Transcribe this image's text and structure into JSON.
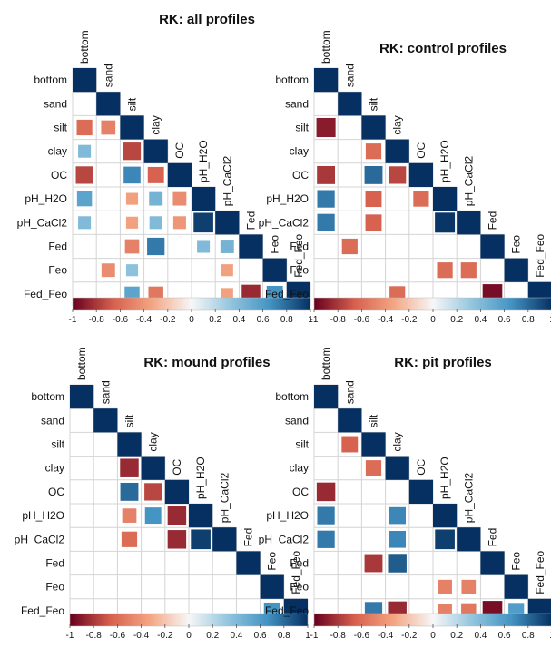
{
  "palette": {
    "neg_end": "#67001f",
    "neg_mid": "#d6604d",
    "neg_light": "#f4a582",
    "neutral": "#f7f7f7",
    "pos_light": "#92c5de",
    "pos_mid": "#4393c3",
    "pos_end": "#053061"
  },
  "chart_data": [
    {
      "type": "heatmap",
      "title": "RK: all profiles",
      "variables": [
        "bottom",
        "sand",
        "silt",
        "clay",
        "OC",
        "pH_H2O",
        "pH_CaCl2",
        "Fed",
        "Feo",
        "Fed_Feo"
      ],
      "colorbar_ticks": [
        "-1",
        "-0.8",
        "-0.6",
        "-0.4",
        "-0.2",
        "0",
        "0.2",
        "0.4",
        "0.6",
        "0.8",
        "1"
      ],
      "cells": [
        {
          "row": 0,
          "col": 0,
          "value": 1
        },
        {
          "row": 1,
          "col": 1,
          "value": 1
        },
        {
          "row": 2,
          "col": 0,
          "value": -0.6
        },
        {
          "row": 2,
          "col": 1,
          "value": -0.5
        },
        {
          "row": 2,
          "col": 2,
          "value": 1
        },
        {
          "row": 3,
          "col": 0,
          "value": 0.4
        },
        {
          "row": 3,
          "col": 2,
          "value": -0.75
        },
        {
          "row": 3,
          "col": 3,
          "value": 1
        },
        {
          "row": 4,
          "col": 0,
          "value": -0.75
        },
        {
          "row": 4,
          "col": 2,
          "value": 0.7
        },
        {
          "row": 4,
          "col": 3,
          "value": -0.65
        },
        {
          "row": 4,
          "col": 4,
          "value": 1
        },
        {
          "row": 5,
          "col": 0,
          "value": 0.55
        },
        {
          "row": 5,
          "col": 2,
          "value": -0.35
        },
        {
          "row": 5,
          "col": 3,
          "value": 0.45
        },
        {
          "row": 5,
          "col": 4,
          "value": -0.45
        },
        {
          "row": 5,
          "col": 5,
          "value": 1
        },
        {
          "row": 6,
          "col": 0,
          "value": 0.4
        },
        {
          "row": 6,
          "col": 2,
          "value": -0.35
        },
        {
          "row": 6,
          "col": 3,
          "value": 0.4
        },
        {
          "row": 6,
          "col": 4,
          "value": -0.4
        },
        {
          "row": 6,
          "col": 5,
          "value": 0.95
        },
        {
          "row": 6,
          "col": 6,
          "value": 1
        },
        {
          "row": 7,
          "col": 2,
          "value": -0.5
        },
        {
          "row": 7,
          "col": 3,
          "value": 0.75
        },
        {
          "row": 7,
          "col": 5,
          "value": 0.4
        },
        {
          "row": 7,
          "col": 6,
          "value": 0.45
        },
        {
          "row": 7,
          "col": 7,
          "value": 1
        },
        {
          "row": 8,
          "col": 1,
          "value": -0.45
        },
        {
          "row": 8,
          "col": 2,
          "value": 0.35
        },
        {
          "row": 8,
          "col": 6,
          "value": -0.35
        },
        {
          "row": 8,
          "col": 8,
          "value": 1
        },
        {
          "row": 9,
          "col": 2,
          "value": 0.55
        },
        {
          "row": 9,
          "col": 3,
          "value": -0.55
        },
        {
          "row": 9,
          "col": 6,
          "value": -0.35
        },
        {
          "row": 9,
          "col": 7,
          "value": -0.85
        },
        {
          "row": 9,
          "col": 8,
          "value": 0.65
        },
        {
          "row": 9,
          "col": 9,
          "value": 1
        }
      ]
    },
    {
      "type": "heatmap",
      "title": "RK: control profiles",
      "variables": [
        "bottom",
        "sand",
        "silt",
        "clay",
        "OC",
        "pH_H2O",
        "pH_CaCl2",
        "Fed",
        "Feo",
        "Fed_Feo"
      ],
      "colorbar_ticks": [
        "-1",
        "-0.8",
        "-0.6",
        "-0.4",
        "-0.2",
        "0",
        "0.2",
        "0.4",
        "0.6",
        "0.8",
        "1"
      ],
      "cells": [
        {
          "row": 0,
          "col": 0,
          "value": 1
        },
        {
          "row": 1,
          "col": 1,
          "value": 1
        },
        {
          "row": 2,
          "col": 0,
          "value": -0.9
        },
        {
          "row": 2,
          "col": 2,
          "value": 1
        },
        {
          "row": 3,
          "col": 2,
          "value": -0.6
        },
        {
          "row": 3,
          "col": 3,
          "value": 1
        },
        {
          "row": 4,
          "col": 0,
          "value": -0.8
        },
        {
          "row": 4,
          "col": 2,
          "value": 0.8
        },
        {
          "row": 4,
          "col": 3,
          "value": -0.75
        },
        {
          "row": 4,
          "col": 4,
          "value": 1
        },
        {
          "row": 5,
          "col": 0,
          "value": 0.75
        },
        {
          "row": 5,
          "col": 2,
          "value": -0.65
        },
        {
          "row": 5,
          "col": 4,
          "value": -0.6
        },
        {
          "row": 5,
          "col": 5,
          "value": 1
        },
        {
          "row": 6,
          "col": 0,
          "value": 0.75
        },
        {
          "row": 6,
          "col": 2,
          "value": -0.65
        },
        {
          "row": 6,
          "col": 5,
          "value": 0.98
        },
        {
          "row": 6,
          "col": 6,
          "value": 1
        },
        {
          "row": 7,
          "col": 1,
          "value": -0.6
        },
        {
          "row": 7,
          "col": 7,
          "value": 1
        },
        {
          "row": 8,
          "col": 5,
          "value": -0.6
        },
        {
          "row": 8,
          "col": 6,
          "value": -0.6
        },
        {
          "row": 8,
          "col": 8,
          "value": 1
        },
        {
          "row": 9,
          "col": 3,
          "value": -0.6
        },
        {
          "row": 9,
          "col": 7,
          "value": -0.95
        },
        {
          "row": 9,
          "col": 9,
          "value": 1
        }
      ]
    },
    {
      "type": "heatmap",
      "title": "RK: mound profiles",
      "variables": [
        "bottom",
        "sand",
        "silt",
        "clay",
        "OC",
        "pH_H2O",
        "pH_CaCl2",
        "Fed",
        "Feo",
        "Fed_Feo"
      ],
      "colorbar_ticks": [
        "-1",
        "-0.8",
        "-0.6",
        "-0.4",
        "-0.2",
        "0",
        "0.2",
        "0.4",
        "0.6",
        "0.8",
        "1"
      ],
      "cells": [
        {
          "row": 0,
          "col": 0,
          "value": 1
        },
        {
          "row": 1,
          "col": 1,
          "value": 1
        },
        {
          "row": 2,
          "col": 2,
          "value": 1
        },
        {
          "row": 3,
          "col": 2,
          "value": -0.85
        },
        {
          "row": 3,
          "col": 3,
          "value": 1
        },
        {
          "row": 4,
          "col": 2,
          "value": 0.8
        },
        {
          "row": 4,
          "col": 3,
          "value": -0.75
        },
        {
          "row": 4,
          "col": 4,
          "value": 1
        },
        {
          "row": 5,
          "col": 2,
          "value": -0.5
        },
        {
          "row": 5,
          "col": 3,
          "value": 0.65
        },
        {
          "row": 5,
          "col": 4,
          "value": -0.85
        },
        {
          "row": 5,
          "col": 5,
          "value": 1
        },
        {
          "row": 6,
          "col": 2,
          "value": -0.6
        },
        {
          "row": 6,
          "col": 4,
          "value": -0.85
        },
        {
          "row": 6,
          "col": 5,
          "value": 0.95
        },
        {
          "row": 6,
          "col": 6,
          "value": 1
        },
        {
          "row": 7,
          "col": 7,
          "value": 1
        },
        {
          "row": 8,
          "col": 8,
          "value": 1
        },
        {
          "row": 9,
          "col": 8,
          "value": 0.65
        },
        {
          "row": 9,
          "col": 9,
          "value": 1
        }
      ]
    },
    {
      "type": "heatmap",
      "title": "RK: pit profiles",
      "variables": [
        "bottom",
        "sand",
        "silt",
        "clay",
        "OC",
        "pH_H2O",
        "pH_CaCl2",
        "Fed",
        "Feo",
        "Fed_Feo"
      ],
      "colorbar_ticks": [
        "-1",
        "-0.8",
        "-0.6",
        "-0.4",
        "-0.2",
        "0",
        "0.2",
        "0.4",
        "0.6",
        "0.8",
        "1"
      ],
      "cells": [
        {
          "row": 0,
          "col": 0,
          "value": 1
        },
        {
          "row": 1,
          "col": 1,
          "value": 1
        },
        {
          "row": 2,
          "col": 1,
          "value": -0.65
        },
        {
          "row": 2,
          "col": 2,
          "value": 1
        },
        {
          "row": 3,
          "col": 2,
          "value": -0.6
        },
        {
          "row": 3,
          "col": 3,
          "value": 1
        },
        {
          "row": 4,
          "col": 0,
          "value": -0.85
        },
        {
          "row": 4,
          "col": 4,
          "value": 1
        },
        {
          "row": 5,
          "col": 0,
          "value": 0.75
        },
        {
          "row": 5,
          "col": 3,
          "value": 0.7
        },
        {
          "row": 5,
          "col": 5,
          "value": 1
        },
        {
          "row": 6,
          "col": 0,
          "value": 0.75
        },
        {
          "row": 6,
          "col": 3,
          "value": 0.7
        },
        {
          "row": 6,
          "col": 5,
          "value": 0.95
        },
        {
          "row": 6,
          "col": 6,
          "value": 1
        },
        {
          "row": 7,
          "col": 2,
          "value": -0.8
        },
        {
          "row": 7,
          "col": 3,
          "value": 0.85
        },
        {
          "row": 7,
          "col": 7,
          "value": 1
        },
        {
          "row": 8,
          "col": 5,
          "value": -0.5
        },
        {
          "row": 8,
          "col": 6,
          "value": -0.5
        },
        {
          "row": 8,
          "col": 8,
          "value": 1
        },
        {
          "row": 9,
          "col": 2,
          "value": 0.75
        },
        {
          "row": 9,
          "col": 3,
          "value": -0.85
        },
        {
          "row": 9,
          "col": 5,
          "value": -0.5
        },
        {
          "row": 9,
          "col": 6,
          "value": -0.55
        },
        {
          "row": 9,
          "col": 7,
          "value": -0.95
        },
        {
          "row": 9,
          "col": 8,
          "value": 0.6
        },
        {
          "row": 9,
          "col": 9,
          "value": 1
        }
      ]
    }
  ]
}
